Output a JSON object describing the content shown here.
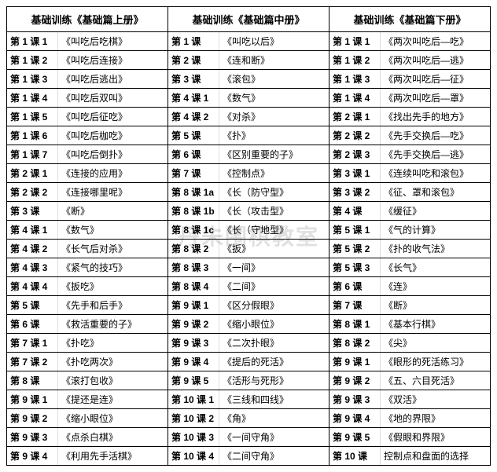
{
  "watermark": "丹朱围棋教室",
  "columns": [
    {
      "header": "基础训练《基础篇上册》",
      "rows": [
        {
          "k": "第 1 课 1",
          "v": "《叫吃后吃棋》"
        },
        {
          "k": "第 1 课 2",
          "v": "《叫吃后连接》"
        },
        {
          "k": "第 1 课 3",
          "v": "《叫吃后逃出》"
        },
        {
          "k": "第 1 课 4",
          "v": "《叫吃后双叫》"
        },
        {
          "k": "第 1 课 5",
          "v": "《叫吃后征吃》"
        },
        {
          "k": "第 1 课 6",
          "v": "《叫吃后枷吃》"
        },
        {
          "k": "第 1 课 7",
          "v": "《叫吃后倒扑》"
        },
        {
          "k": "第 2 课 1",
          "v": "《连接的应用》"
        },
        {
          "k": "第 2 课 2",
          "v": "《连接哪里呢》"
        },
        {
          "k": "第 3 课",
          "v": "《断》"
        },
        {
          "k": "第 4 课 1",
          "v": "《数气》"
        },
        {
          "k": "第 4 课 2",
          "v": "《长气后对杀》"
        },
        {
          "k": "第 4 课 3",
          "v": "《紧气的技巧》"
        },
        {
          "k": "第 4 课 4",
          "v": "《扳吃》"
        },
        {
          "k": "第 5 课",
          "v": "《先手和后手》"
        },
        {
          "k": "第 6 课",
          "v": "《救活重要的子》"
        },
        {
          "k": "第 7 课 1",
          "v": "《扑吃》"
        },
        {
          "k": "第 7 课 2",
          "v": "《扑吃两次》"
        },
        {
          "k": "第 8 课",
          "v": "《滚打包收》"
        },
        {
          "k": "第 9 课 1",
          "v": "《提还是连》"
        },
        {
          "k": "第 9 课 2",
          "v": "《缩小眼位》"
        },
        {
          "k": "第 9 课 3",
          "v": "《点杀白棋》"
        },
        {
          "k": "第 9 课 4",
          "v": "《利用先手活棋》"
        }
      ]
    },
    {
      "header": "基础训练《基础篇中册》",
      "rows": [
        {
          "k": "第 1 课",
          "v": "《叫吃以后》"
        },
        {
          "k": "第 2 课",
          "v": "《连和断》"
        },
        {
          "k": "第 3 课",
          "v": "《滚包》"
        },
        {
          "k": "第 4 课 1",
          "v": "《数气》"
        },
        {
          "k": "第 4 课 2",
          "v": "《对杀》"
        },
        {
          "k": "第 5 课",
          "v": "《扑》"
        },
        {
          "k": "第 6 课",
          "v": "《区别重要的子》"
        },
        {
          "k": "第 7 课",
          "v": "《控制点》"
        },
        {
          "k": "第 8 课 1a",
          "v": "《长（防守型》"
        },
        {
          "k": "第 8 课 1b",
          "v": "《长（攻击型》"
        },
        {
          "k": "第 8 课 1c",
          "v": "《长（守地型》"
        },
        {
          "k": "第 8 课 2",
          "v": "《扳》"
        },
        {
          "k": "第 8 课 3",
          "v": "《一间》"
        },
        {
          "k": "第 8 课 4",
          "v": "《二间》"
        },
        {
          "k": "第 9 课 1",
          "v": "《区分假眼》"
        },
        {
          "k": "第 9 课 2",
          "v": "《缩小眼位》"
        },
        {
          "k": "第 9 课 3",
          "v": "《二次扑眼》"
        },
        {
          "k": "第 9 课 4",
          "v": "《提后的死活》"
        },
        {
          "k": "第 9 课 5",
          "v": "《活形与死形》"
        },
        {
          "k": "第 10 课 1",
          "v": "《三线和四线》"
        },
        {
          "k": "第 10 课 2",
          "v": "《角》"
        },
        {
          "k": "第 10 课 3",
          "v": "《一间守角》"
        },
        {
          "k": "第 10 课 4",
          "v": "《二间守角》"
        }
      ]
    },
    {
      "header": "基础训练《基础篇下册》",
      "rows": [
        {
          "k": "第 1 课 1",
          "v": "《两次叫吃后—吃》"
        },
        {
          "k": "第 1 课 2",
          "v": "《两次叫吃后—逃》"
        },
        {
          "k": "第 1 课 3",
          "v": "《两次叫吃后—征》"
        },
        {
          "k": "第 1 课 4",
          "v": "《两次叫吃后—罩》"
        },
        {
          "k": "第 2 课 1",
          "v": "《找出先手的地方》"
        },
        {
          "k": "第 2 课 2",
          "v": "《先手交换后—吃》"
        },
        {
          "k": "第 2 课 3",
          "v": "《先手交换后—逃》"
        },
        {
          "k": "第 3 课 1",
          "v": "《连续叫吃和滚包》"
        },
        {
          "k": "第 3 课 2",
          "v": "《征、罩和滚包》"
        },
        {
          "k": "第 4 课",
          "v": "《缓征》"
        },
        {
          "k": "第 5 课 1",
          "v": "《气的计算》"
        },
        {
          "k": "第 5 课 2",
          "v": "《扑的收气法》"
        },
        {
          "k": "第 5 课 3",
          "v": "《长气》"
        },
        {
          "k": "第 6 课",
          "v": "《连》"
        },
        {
          "k": "第 7 课",
          "v": "《断》"
        },
        {
          "k": "第 8 课 1",
          "v": "《基本行棋》"
        },
        {
          "k": "第 8 课 2",
          "v": "《尖》"
        },
        {
          "k": "第 9 课 1",
          "v": "《眼形的死活练习》"
        },
        {
          "k": "第 9 课 2",
          "v": "《五、六目死活》"
        },
        {
          "k": "第 9 课 3",
          "v": "《双活》"
        },
        {
          "k": "第 9 课 4",
          "v": "《地的界限》"
        },
        {
          "k": "第 9 课 5",
          "v": "《假眼和界限》"
        },
        {
          "k": "第 10 课",
          "v": "控制点和盘面的选择"
        }
      ]
    }
  ]
}
